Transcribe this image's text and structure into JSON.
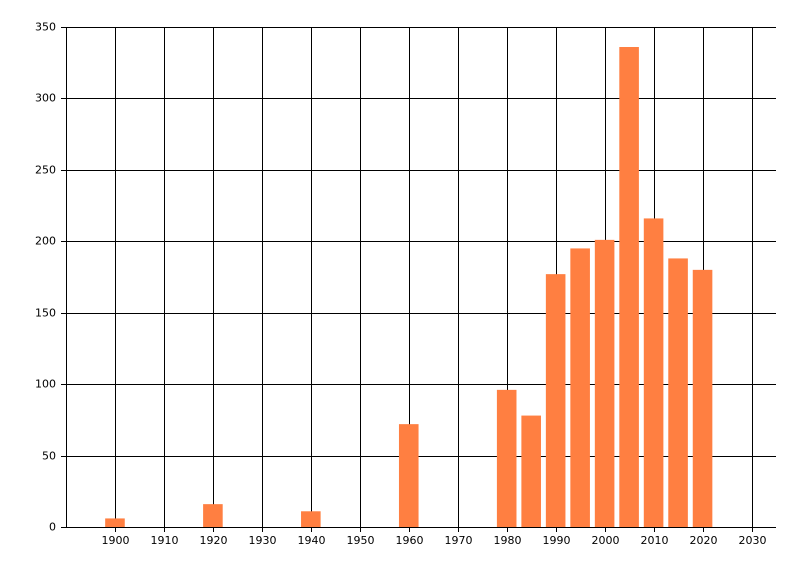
{
  "chart_data": {
    "type": "bar",
    "x": [
      1900,
      1920,
      1940,
      1960,
      1980,
      1985,
      1990,
      1995,
      2000,
      2005,
      2010,
      2015,
      2020
    ],
    "values": [
      6,
      16,
      11,
      72,
      96,
      78,
      177,
      195,
      201,
      336,
      216,
      188,
      180
    ],
    "color": "#ff7f41",
    "xlim": [
      1890,
      2035
    ],
    "xticks": [
      1900,
      1910,
      1920,
      1930,
      1940,
      1950,
      1960,
      1970,
      1980,
      1990,
      2000,
      2010,
      2020,
      2030
    ],
    "ylim": [
      0,
      350
    ],
    "yticks": [
      0,
      50,
      100,
      150,
      200,
      250,
      300,
      350
    ],
    "grid": true
  }
}
